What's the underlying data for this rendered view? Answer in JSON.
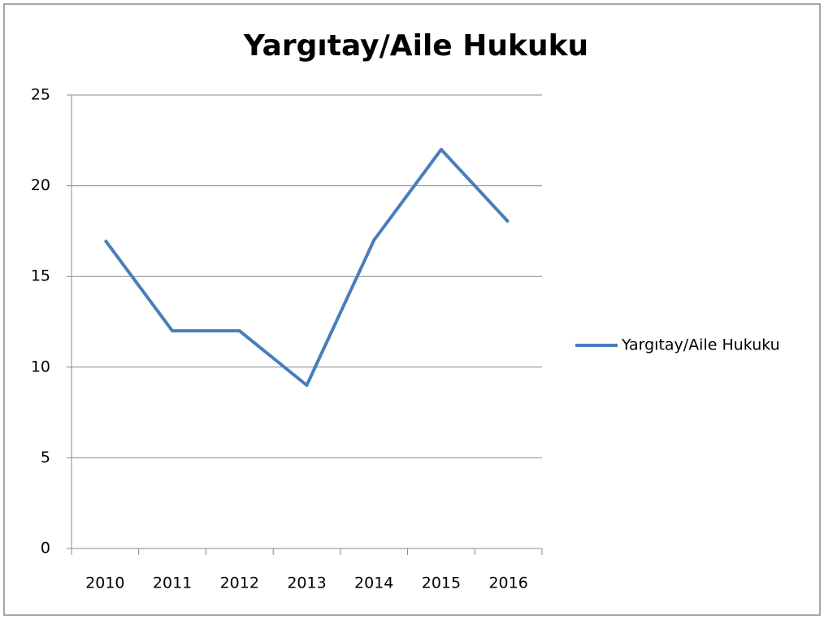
{
  "chart_data": {
    "type": "line",
    "title": "Yargıtay/Aile Hukuku",
    "categories": [
      "2010",
      "2011",
      "2012",
      "2013",
      "2014",
      "2015",
      "2016"
    ],
    "series": [
      {
        "name": "Yargıtay/Aile Hukuku",
        "color": "#4a7ebb",
        "values": [
          17,
          12,
          12,
          9,
          17,
          22,
          18
        ]
      }
    ],
    "ylim": [
      0,
      25
    ],
    "yticks": [
      0,
      5,
      10,
      15,
      20,
      25
    ],
    "grid": true,
    "legend": "right"
  }
}
